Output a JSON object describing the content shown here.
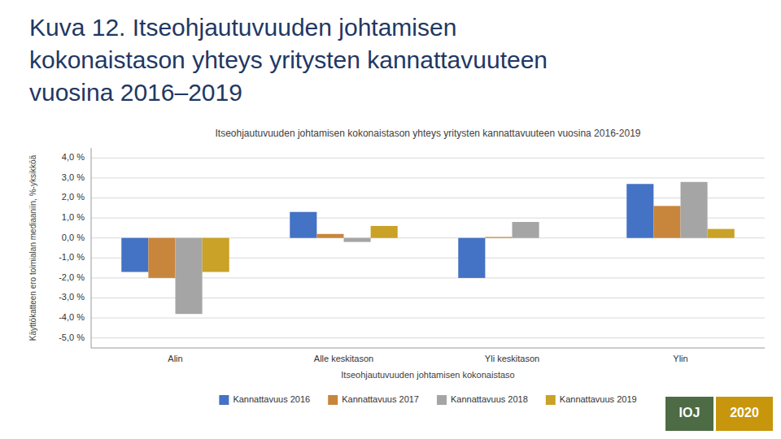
{
  "heading": {
    "lines": [
      "Kuva 12. Itseohjautuvuuden johtamisen",
      "kokonaistason yhteys yritysten kannattavuuteen",
      "vuosina 2016–2019"
    ],
    "color": "#1F3864"
  },
  "badges": [
    {
      "text": "IOJ",
      "color": "#4D6B44"
    },
    {
      "text": "2020",
      "color": "#C8960C"
    }
  ],
  "chart_data": {
    "type": "bar",
    "title": "Itseohjautuvuuden johtamisen kokonaistason yhteys yritysten kannattavuuteen vuosina 2016-2019",
    "xlabel": "Itseohjautuvuuden johtamisen kokonaistaso",
    "ylabel": "Käyttökatteen ero toimialan mediaaniin, %-yksikköä",
    "categories": [
      "Alin",
      "Alle keskitason",
      "Yli keskitason",
      "Ylin"
    ],
    "series": [
      {
        "name": "Kannattavuus 2016",
        "color": "#4472C4",
        "values": [
          -1.7,
          1.3,
          -2.0,
          2.7
        ]
      },
      {
        "name": "Kannattavuus 2017",
        "color": "#C8863C",
        "values": [
          -2.0,
          0.2,
          0.05,
          1.6
        ]
      },
      {
        "name": "Kannattavuus 2018",
        "color": "#A5A5A5",
        "values": [
          -3.8,
          -0.2,
          0.8,
          2.8
        ]
      },
      {
        "name": "Kannattavuus 2019",
        "color": "#C9A227",
        "values": [
          -1.7,
          0.6,
          0.0,
          0.45
        ]
      }
    ],
    "ylim": [
      -5.5,
      4.5
    ],
    "yticks": [
      {
        "value": -5.0,
        "label": "-5,0 %"
      },
      {
        "value": -4.0,
        "label": "-4,0 %"
      },
      {
        "value": -3.0,
        "label": "-3,0 %"
      },
      {
        "value": -2.0,
        "label": "-2,0 %"
      },
      {
        "value": -1.0,
        "label": "-1,0 %"
      },
      {
        "value": 0.0,
        "label": "0,0 %"
      },
      {
        "value": 1.0,
        "label": "1,0 %"
      },
      {
        "value": 2.0,
        "label": "2,0 %"
      },
      {
        "value": 3.0,
        "label": "3,0 %"
      },
      {
        "value": 4.0,
        "label": "4,0 %"
      }
    ],
    "grid": true,
    "legend": "bottom"
  }
}
